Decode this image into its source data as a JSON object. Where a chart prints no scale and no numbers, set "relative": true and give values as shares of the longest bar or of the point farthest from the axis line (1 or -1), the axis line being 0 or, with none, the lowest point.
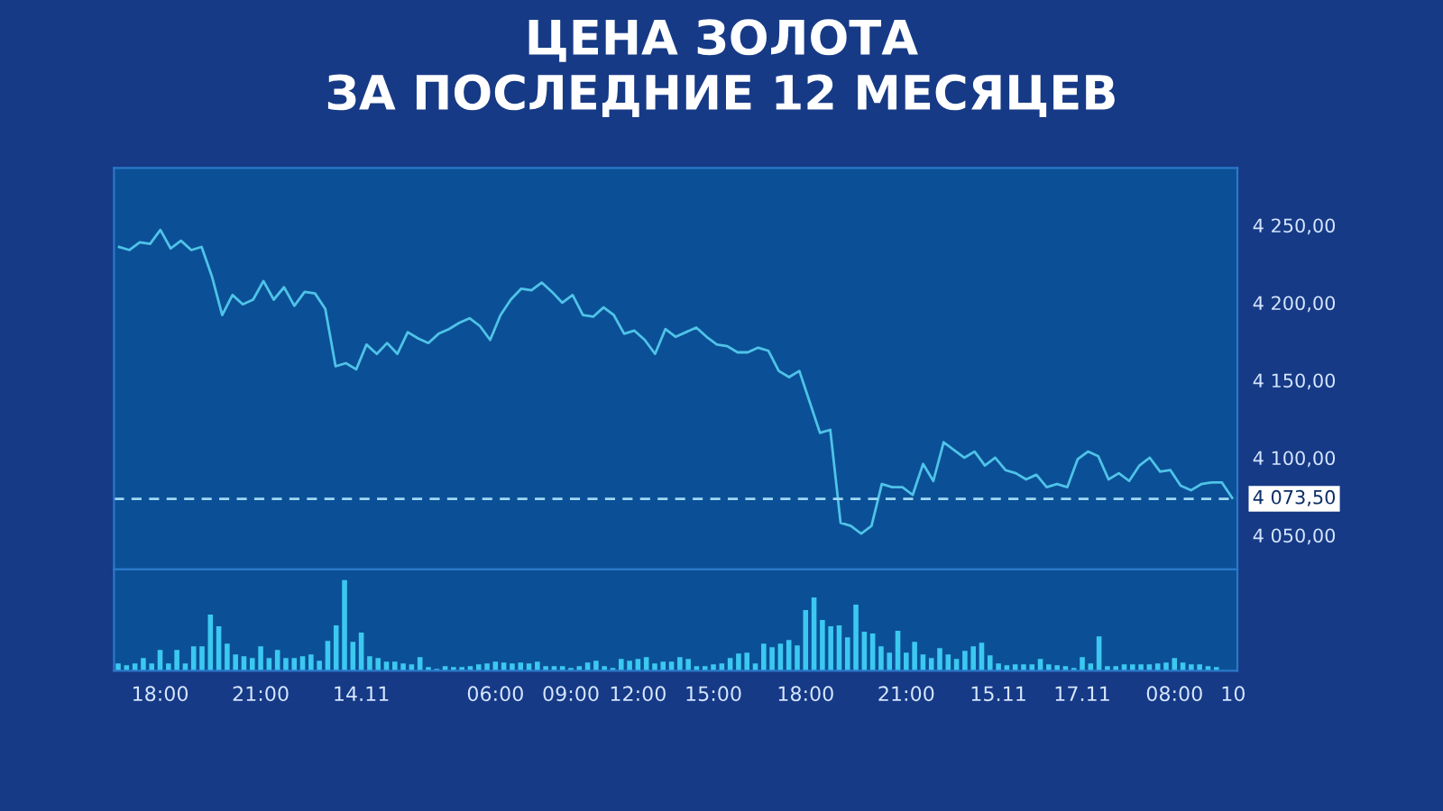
{
  "chart_data": [
    {
      "type": "line",
      "title": "ЦЕНА ЗОЛОТА\nЗА ПОСЛЕДНИЕ 12 МЕСЯЦЕВ",
      "categories": [
        null,
        null,
        null,
        null,
        null,
        null,
        null,
        null,
        null,
        null,
        null,
        null,
        null,
        null,
        null,
        null,
        null,
        null,
        null,
        null,
        null,
        null,
        null,
        null,
        null,
        null,
        null,
        null,
        null,
        null,
        null,
        null,
        null,
        null,
        null,
        null,
        null,
        null,
        null,
        null,
        null,
        null,
        null,
        null,
        null,
        null,
        null,
        null,
        null,
        null,
        null,
        null,
        null,
        null,
        null,
        null,
        null,
        null,
        null,
        null,
        null,
        null,
        null,
        null,
        null,
        null,
        null,
        null,
        null,
        null,
        null,
        null,
        null,
        null,
        null,
        null,
        null,
        null,
        null,
        null,
        null,
        null,
        null,
        null,
        null,
        null,
        null,
        null,
        null,
        null,
        null,
        null,
        null,
        null,
        null,
        null,
        null,
        null,
        null,
        null,
        null,
        null,
        null,
        null,
        null,
        null,
        null,
        null,
        null
      ],
      "series": [
        {
          "color": "#4fc3e8",
          "values": [
            4236,
            4234,
            4239,
            4238,
            4247,
            4235,
            4240,
            4234,
            4236,
            4217,
            4192,
            4205,
            4199,
            4202,
            4214,
            4202,
            4210,
            4198,
            4207,
            4206,
            4196,
            4159,
            4161,
            4157,
            4173,
            4167,
            4174,
            4167,
            4181,
            4177,
            4174,
            4180,
            4183,
            4187,
            4190,
            4185,
            4176,
            4192,
            4202,
            4209,
            4208,
            4213,
            4207,
            4200,
            4205,
            4192,
            4191,
            4197,
            4192,
            4180,
            4182,
            4176,
            4167,
            4183,
            4178,
            4181,
            4184,
            4178,
            4173,
            4172,
            4168,
            4168,
            4171,
            4169,
            4156,
            4152,
            4156,
            4136,
            4116,
            4118,
            4058,
            4056,
            4051,
            4056,
            4083,
            4081,
            4081,
            4076,
            4096,
            4085,
            4110,
            4105,
            4100,
            4104,
            4095,
            4100,
            4092,
            4090,
            4086,
            4089,
            4081,
            4083,
            4081,
            4099,
            4104,
            4101,
            4086,
            4090,
            4085,
            4095,
            4100,
            4091,
            4092,
            4082,
            4079,
            4083,
            4084,
            4084,
            4074
          ]
        }
      ],
      "ylim": [
        4028,
        4287
      ],
      "yticks": [
        {
          "value": 4050,
          "label": "4 050,00"
        },
        {
          "value": 4100,
          "label": "4 100,00"
        },
        {
          "value": 4150,
          "label": "4 150,00"
        },
        {
          "value": 4200,
          "label": "4 200,00"
        },
        {
          "value": 4250,
          "label": "4 250,00"
        }
      ],
      "tick_labels": "y",
      "ref_lines": [
        {
          "axis": "y",
          "value": 4073.5,
          "label": "4 073,50",
          "color": "#9fd8f5",
          "line_style": "dashed"
        }
      ]
    },
    {
      "type": "bar",
      "relative": true,
      "color": "#3cc8f0",
      "categories": [
        null,
        null,
        null,
        null,
        null,
        "18:00",
        null,
        null,
        null,
        null,
        null,
        null,
        null,
        null,
        null,
        null,
        null,
        "21:00",
        null,
        null,
        null,
        null,
        null,
        null,
        null,
        null,
        null,
        null,
        null,
        "14.11",
        null,
        null,
        null,
        null,
        null,
        null,
        null,
        null,
        null,
        null,
        null,
        null,
        null,
        null,
        null,
        "06:00",
        null,
        null,
        null,
        null,
        null,
        null,
        null,
        null,
        "09:00",
        null,
        null,
        null,
        null,
        null,
        null,
        null,
        "12:00",
        null,
        null,
        null,
        null,
        null,
        null,
        null,
        null,
        "15:00",
        null,
        null,
        null,
        null,
        null,
        null,
        null,
        null,
        null,
        null,
        "18:00",
        null,
        null,
        null,
        null,
        null,
        null,
        null,
        null,
        null,
        null,
        null,
        "21:00",
        null,
        null,
        null,
        null,
        null,
        null,
        null,
        null,
        null,
        null,
        "15.11",
        null,
        null,
        null,
        null,
        null,
        null,
        null,
        null,
        null,
        "17.11",
        null,
        null,
        null,
        null,
        null,
        null,
        null,
        null,
        null,
        null,
        "08:00",
        null,
        null,
        null,
        null,
        null,
        null,
        "10"
      ],
      "values": [
        0.08,
        0.06,
        0.08,
        0.14,
        0.08,
        0.23,
        0.08,
        0.23,
        0.08,
        0.27,
        0.27,
        0.62,
        0.49,
        0.3,
        0.18,
        0.16,
        0.14,
        0.27,
        0.14,
        0.23,
        0.14,
        0.14,
        0.16,
        0.18,
        0.11,
        0.33,
        0.5,
        1,
        0.32,
        0.42,
        0.16,
        0.14,
        0.1,
        0.1,
        0.08,
        0.07,
        0.15,
        0.04,
        0.02,
        0.05,
        0.04,
        0.04,
        0.05,
        0.07,
        0.08,
        0.1,
        0.09,
        0.08,
        0.09,
        0.08,
        0.1,
        0.05,
        0.05,
        0.05,
        0.03,
        0.05,
        0.09,
        0.11,
        0.05,
        0.03,
        0.13,
        0.11,
        0.13,
        0.15,
        0.08,
        0.1,
        0.1,
        0.15,
        0.13,
        0.05,
        0.05,
        0.07,
        0.08,
        0.14,
        0.19,
        0.2,
        0.08,
        0.3,
        0.26,
        0.3,
        0.34,
        0.28,
        0.67,
        0.81,
        0.56,
        0.49,
        0.5,
        0.37,
        0.73,
        0.43,
        0.41,
        0.27,
        0.2,
        0.44,
        0.2,
        0.32,
        0.18,
        0.14,
        0.25,
        0.18,
        0.13,
        0.22,
        0.27,
        0.31,
        0.17,
        0.08,
        0.06,
        0.07,
        0.07,
        0.07,
        0.13,
        0.07,
        0.06,
        0.05,
        0.03,
        0.15,
        0.08,
        0.38,
        0.05,
        0.05,
        0.07,
        0.07,
        0.07,
        0.07,
        0.08,
        0.09,
        0.14,
        0.09,
        0.07,
        0.07,
        0.05,
        0.04,
        null,
        null
      ],
      "tick_labels": "x"
    }
  ]
}
